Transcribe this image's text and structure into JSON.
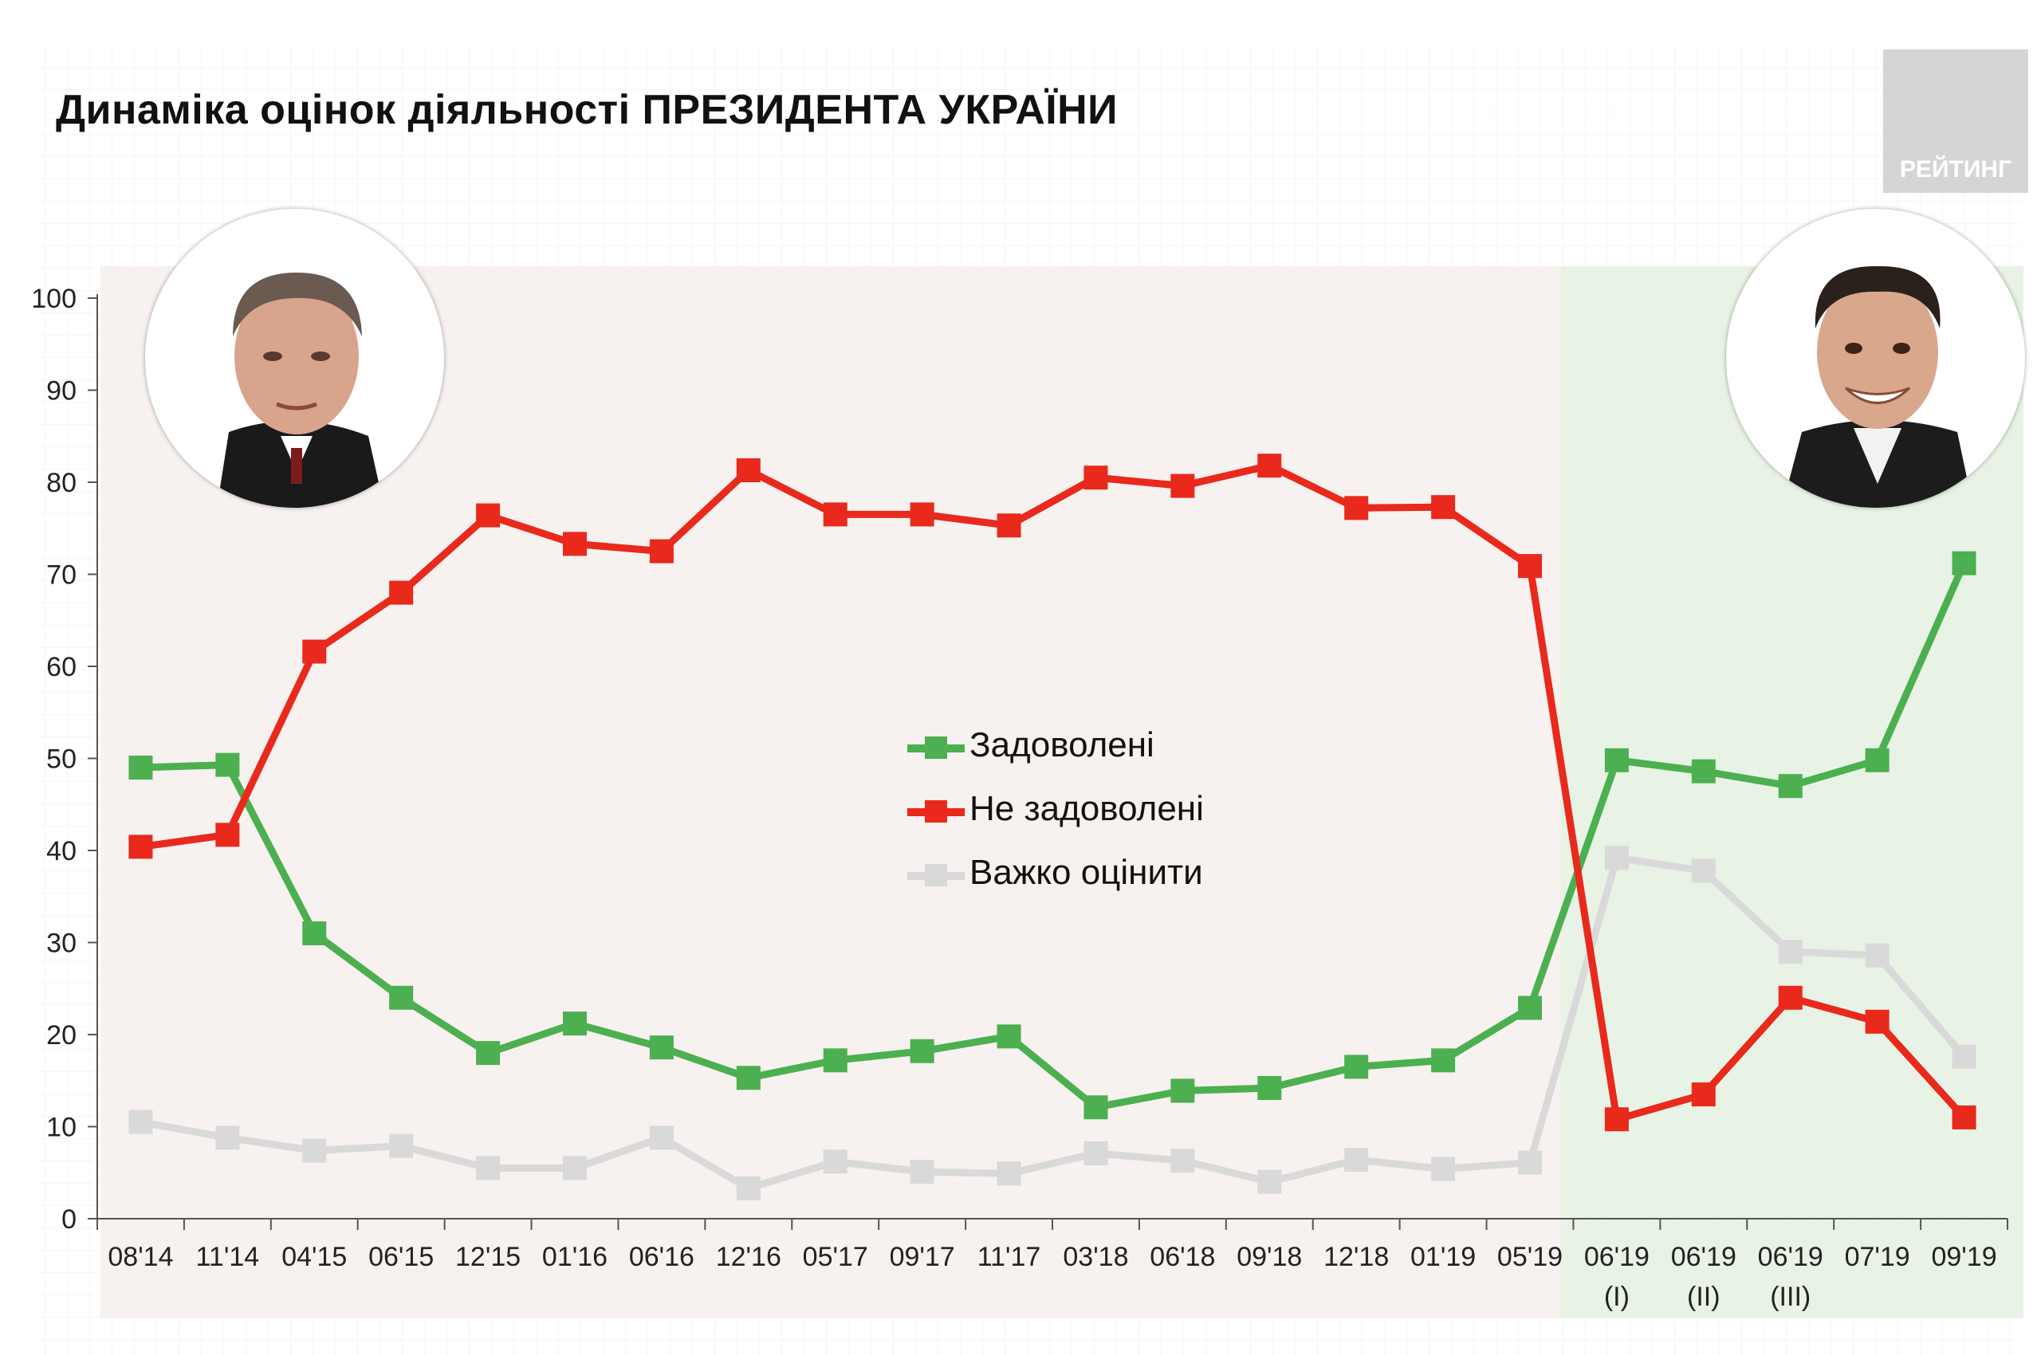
{
  "title": "Динаміка оцінок діяльності ПРЕЗИДЕНТА УКРАЇНИ",
  "logo_text": "РЕЙТИНГ",
  "portraits": {
    "left": "poroshenko-portrait",
    "right": "zelensky-portrait"
  },
  "colors": {
    "satisfied": "#4caf50",
    "dissatisfied": "#e8291c",
    "hard_to_say": "#d9d9d9",
    "poroshenko_period_bg": "#f6efec",
    "zelensky_period_bg": "#e4f1e1"
  },
  "chart_data": {
    "type": "line",
    "title": "Динаміка оцінок діяльності ПРЕЗИДЕНТА УКРАЇНИ",
    "categories": [
      "08'14",
      "11'14",
      "04'15",
      "06'15",
      "12'15",
      "01'16",
      "06'16",
      "12'16",
      "05'17",
      "09'17",
      "11'17",
      "03'18",
      "06'18",
      "09'18",
      "12'18",
      "01'19",
      "05'19",
      "06'19 (I)",
      "06'19 (II)",
      "06'19 (III)",
      "07'19",
      "09'19"
    ],
    "category_lines": [
      [
        "08'14"
      ],
      [
        "11'14"
      ],
      [
        "04'15"
      ],
      [
        "06'15"
      ],
      [
        "12'15"
      ],
      [
        "01'16"
      ],
      [
        "06'16"
      ],
      [
        "12'16"
      ],
      [
        "05'17"
      ],
      [
        "09'17"
      ],
      [
        "11'17"
      ],
      [
        "03'18"
      ],
      [
        "06'18"
      ],
      [
        "09'18"
      ],
      [
        "12'18"
      ],
      [
        "01'19"
      ],
      [
        "05'19"
      ],
      [
        "06'19",
        "(I)"
      ],
      [
        "06'19",
        "(II)"
      ],
      [
        "06'19",
        "(III)"
      ],
      [
        "07'19"
      ],
      [
        "09'19"
      ]
    ],
    "series": [
      {
        "name": "Задоволені",
        "color": "#4caf50",
        "values": [
          49,
          49.3,
          31,
          24,
          18,
          21.2,
          18.6,
          15.3,
          17.2,
          18.2,
          19.8,
          12.1,
          13.9,
          14.2,
          16.5,
          17.2,
          22.9,
          49.8,
          48.6,
          47,
          49.8,
          71.2
        ]
      },
      {
        "name": "Не задоволені",
        "color": "#e8291c",
        "values": [
          40.4,
          41.7,
          61.6,
          68,
          76.4,
          73.3,
          72.5,
          81.3,
          76.5,
          76.5,
          75.3,
          80.5,
          79.6,
          81.8,
          77.2,
          77.3,
          70.9,
          10.8,
          13.5,
          24,
          21.4,
          11
        ]
      },
      {
        "name": "Важко оцінити",
        "color": "#d9d9d9",
        "values": [
          10.5,
          8.8,
          7.4,
          7.9,
          5.5,
          5.5,
          8.8,
          3.3,
          6.2,
          5.1,
          4.9,
          7.1,
          6.3,
          4,
          6.4,
          5.4,
          6.1,
          39.2,
          37.8,
          29,
          28.6,
          17.6
        ]
      }
    ],
    "y_ticks": [
      0,
      10,
      20,
      30,
      40,
      50,
      60,
      70,
      80,
      90,
      100
    ],
    "ylim": [
      0,
      100
    ],
    "xlabel": "",
    "ylabel": "",
    "grid": true,
    "legend_placement": "center",
    "shaded_periods": [
      {
        "from": "08'14",
        "to": "05'19",
        "color": "#f6efec"
      },
      {
        "from": "06'19 (I)",
        "to": "09'19",
        "color": "#e4f1e1"
      }
    ]
  }
}
